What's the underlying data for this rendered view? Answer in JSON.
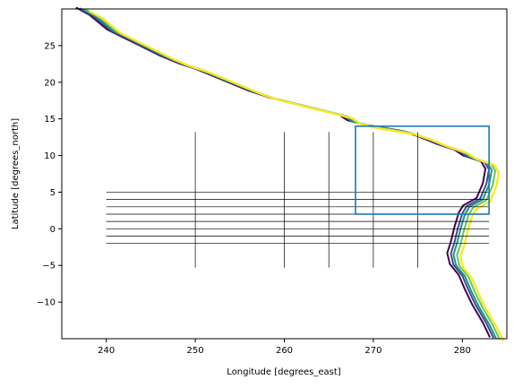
{
  "chart_data": {
    "type": "line",
    "xlabel": "Longitude [degrees_east]",
    "ylabel": "Latitude [degrees_north]",
    "xlim": [
      235.0,
      285.0
    ],
    "ylim": [
      -15.0,
      30.0
    ],
    "xticks": [
      240,
      250,
      260,
      270,
      280
    ],
    "yticks": [
      -10,
      -5,
      0,
      5,
      10,
      15,
      20,
      25
    ],
    "grid": false,
    "legend": "none",
    "contour_colors": [
      "#440154",
      "#3b528b",
      "#21918c",
      "#5ec962",
      "#fde725"
    ],
    "series": [
      {
        "values_lonlat": [
          [
            237.5,
            30
          ],
          [
            239,
            29
          ],
          [
            241,
            27
          ],
          [
            243,
            25.8
          ],
          [
            245,
            24.6
          ],
          [
            247,
            23.4
          ],
          [
            249,
            22.4
          ],
          [
            251,
            21.6
          ],
          [
            253,
            20.6
          ],
          [
            255,
            19.6
          ],
          [
            257,
            18.6
          ],
          [
            259,
            17.8
          ],
          [
            261,
            17.2
          ],
          [
            263,
            16.6
          ],
          [
            265,
            16
          ],
          [
            267,
            15.4
          ],
          [
            268,
            14.6
          ],
          [
            270,
            14
          ],
          [
            272,
            13.6
          ],
          [
            274,
            13.2
          ],
          [
            276,
            12.4
          ],
          [
            278,
            11.4
          ],
          [
            280,
            10.6
          ],
          [
            281,
            9.8
          ],
          [
            282,
            9.4
          ],
          [
            283,
            9
          ],
          [
            283.5,
            8
          ],
          [
            283.2,
            6
          ],
          [
            282.5,
            4
          ],
          [
            281,
            3
          ],
          [
            280.5,
            2
          ],
          [
            280,
            0
          ],
          [
            279.6,
            -2
          ],
          [
            279.2,
            -3.5
          ],
          [
            279.5,
            -5
          ],
          [
            280.5,
            -6.5
          ],
          [
            281.2,
            -8.5
          ],
          [
            282,
            -10.5
          ],
          [
            283.2,
            -13
          ],
          [
            284,
            -15
          ]
        ]
      }
    ],
    "horizontal_lines": {
      "y": [
        5,
        4,
        3,
        2,
        1,
        0,
        -1,
        -2
      ],
      "x_range": [
        240,
        283
      ]
    },
    "vertical_lines": {
      "x": [
        250,
        260,
        265,
        270,
        275
      ],
      "y_range": [
        -5.3,
        13.2
      ]
    },
    "box": {
      "x": [
        268,
        283
      ],
      "y": [
        2,
        14
      ],
      "color": "#1f77b4"
    }
  }
}
